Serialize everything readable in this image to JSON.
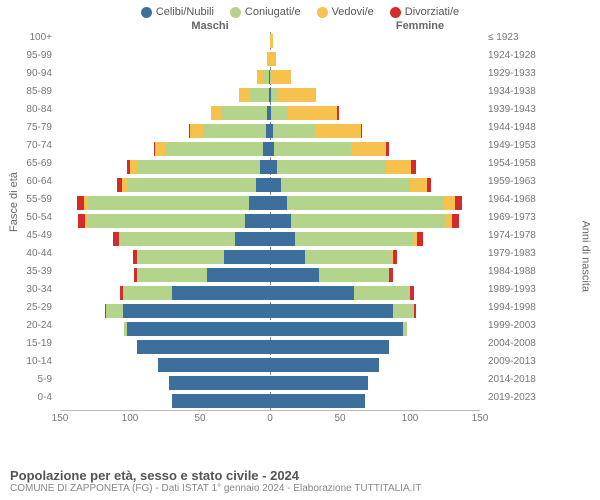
{
  "chart": {
    "type": "population-pyramid",
    "background_color": "#ffffff",
    "grid_color": "#bbbbbb",
    "label_color": "#777777",
    "label_fontsize": 10,
    "header_male": "Maschi",
    "header_female": "Femmine",
    "y_title_left": "Fasce di età",
    "y_title_right": "Anni di nascita",
    "legend": [
      {
        "label": "Celibi/Nubili",
        "color": "#3c6f9c"
      },
      {
        "label": "Coniugati/e",
        "color": "#b4d38b"
      },
      {
        "label": "Vedovi/e",
        "color": "#f6c14d"
      },
      {
        "label": "Divorziati/e",
        "color": "#d22c2c"
      }
    ],
    "xmax": 150,
    "xticks": [
      150,
      100,
      50,
      0,
      50,
      100,
      150
    ],
    "age_bands": [
      "100+",
      "95-99",
      "90-94",
      "85-89",
      "80-84",
      "75-79",
      "70-74",
      "65-69",
      "60-64",
      "55-59",
      "50-54",
      "45-49",
      "40-44",
      "35-39",
      "30-34",
      "25-29",
      "20-24",
      "15-19",
      "10-14",
      "5-9",
      "0-4"
    ],
    "birth_bands": [
      "≤ 1923",
      "1924-1928",
      "1929-1933",
      "1934-1938",
      "1939-1943",
      "1944-1948",
      "1949-1953",
      "1954-1958",
      "1959-1963",
      "1964-1968",
      "1969-1973",
      "1974-1978",
      "1979-1983",
      "1984-1988",
      "1989-1993",
      "1994-1998",
      "1999-2003",
      "2004-2008",
      "2009-2013",
      "2014-2018",
      "2019-2023"
    ],
    "male": [
      {
        "c": 0,
        "m": 0,
        "w": 0,
        "d": 0
      },
      {
        "c": 0,
        "m": 1,
        "w": 1,
        "d": 0
      },
      {
        "c": 1,
        "m": 4,
        "w": 4,
        "d": 0
      },
      {
        "c": 1,
        "m": 13,
        "w": 8,
        "d": 0
      },
      {
        "c": 2,
        "m": 32,
        "w": 8,
        "d": 0
      },
      {
        "c": 3,
        "m": 45,
        "w": 9,
        "d": 1
      },
      {
        "c": 5,
        "m": 70,
        "w": 7,
        "d": 1
      },
      {
        "c": 7,
        "m": 88,
        "w": 5,
        "d": 2
      },
      {
        "c": 10,
        "m": 92,
        "w": 4,
        "d": 3
      },
      {
        "c": 15,
        "m": 115,
        "w": 3,
        "d": 5
      },
      {
        "c": 18,
        "m": 112,
        "w": 2,
        "d": 5
      },
      {
        "c": 25,
        "m": 82,
        "w": 1,
        "d": 4
      },
      {
        "c": 33,
        "m": 62,
        "w": 0,
        "d": 3
      },
      {
        "c": 45,
        "m": 50,
        "w": 0,
        "d": 2
      },
      {
        "c": 70,
        "m": 35,
        "w": 0,
        "d": 2
      },
      {
        "c": 105,
        "m": 12,
        "w": 0,
        "d": 1
      },
      {
        "c": 102,
        "m": 2,
        "w": 0,
        "d": 0
      },
      {
        "c": 95,
        "m": 0,
        "w": 0,
        "d": 0
      },
      {
        "c": 80,
        "m": 0,
        "w": 0,
        "d": 0
      },
      {
        "c": 72,
        "m": 0,
        "w": 0,
        "d": 0
      },
      {
        "c": 70,
        "m": 0,
        "w": 0,
        "d": 0
      }
    ],
    "female": [
      {
        "c": 0,
        "m": 0,
        "w": 2,
        "d": 0
      },
      {
        "c": 0,
        "m": 0,
        "w": 4,
        "d": 0
      },
      {
        "c": 0,
        "m": 1,
        "w": 14,
        "d": 0
      },
      {
        "c": 1,
        "m": 4,
        "w": 28,
        "d": 0
      },
      {
        "c": 1,
        "m": 12,
        "w": 35,
        "d": 1
      },
      {
        "c": 2,
        "m": 30,
        "w": 33,
        "d": 1
      },
      {
        "c": 3,
        "m": 55,
        "w": 25,
        "d": 2
      },
      {
        "c": 5,
        "m": 78,
        "w": 18,
        "d": 3
      },
      {
        "c": 8,
        "m": 92,
        "w": 12,
        "d": 3
      },
      {
        "c": 12,
        "m": 112,
        "w": 8,
        "d": 5
      },
      {
        "c": 15,
        "m": 110,
        "w": 5,
        "d": 5
      },
      {
        "c": 18,
        "m": 85,
        "w": 2,
        "d": 4
      },
      {
        "c": 25,
        "m": 62,
        "w": 1,
        "d": 3
      },
      {
        "c": 35,
        "m": 50,
        "w": 0,
        "d": 3
      },
      {
        "c": 60,
        "m": 40,
        "w": 0,
        "d": 3
      },
      {
        "c": 88,
        "m": 15,
        "w": 0,
        "d": 1
      },
      {
        "c": 95,
        "m": 3,
        "w": 0,
        "d": 0
      },
      {
        "c": 85,
        "m": 0,
        "w": 0,
        "d": 0
      },
      {
        "c": 78,
        "m": 0,
        "w": 0,
        "d": 0
      },
      {
        "c": 70,
        "m": 0,
        "w": 0,
        "d": 0
      },
      {
        "c": 68,
        "m": 0,
        "w": 0,
        "d": 0
      }
    ]
  },
  "footer": {
    "title": "Popolazione per età, sesso e stato civile - 2024",
    "subtitle": "COMUNE DI ZAPPONETA (FG) - Dati ISTAT 1° gennaio 2024 - Elaborazione TUTTITALIA.IT"
  }
}
